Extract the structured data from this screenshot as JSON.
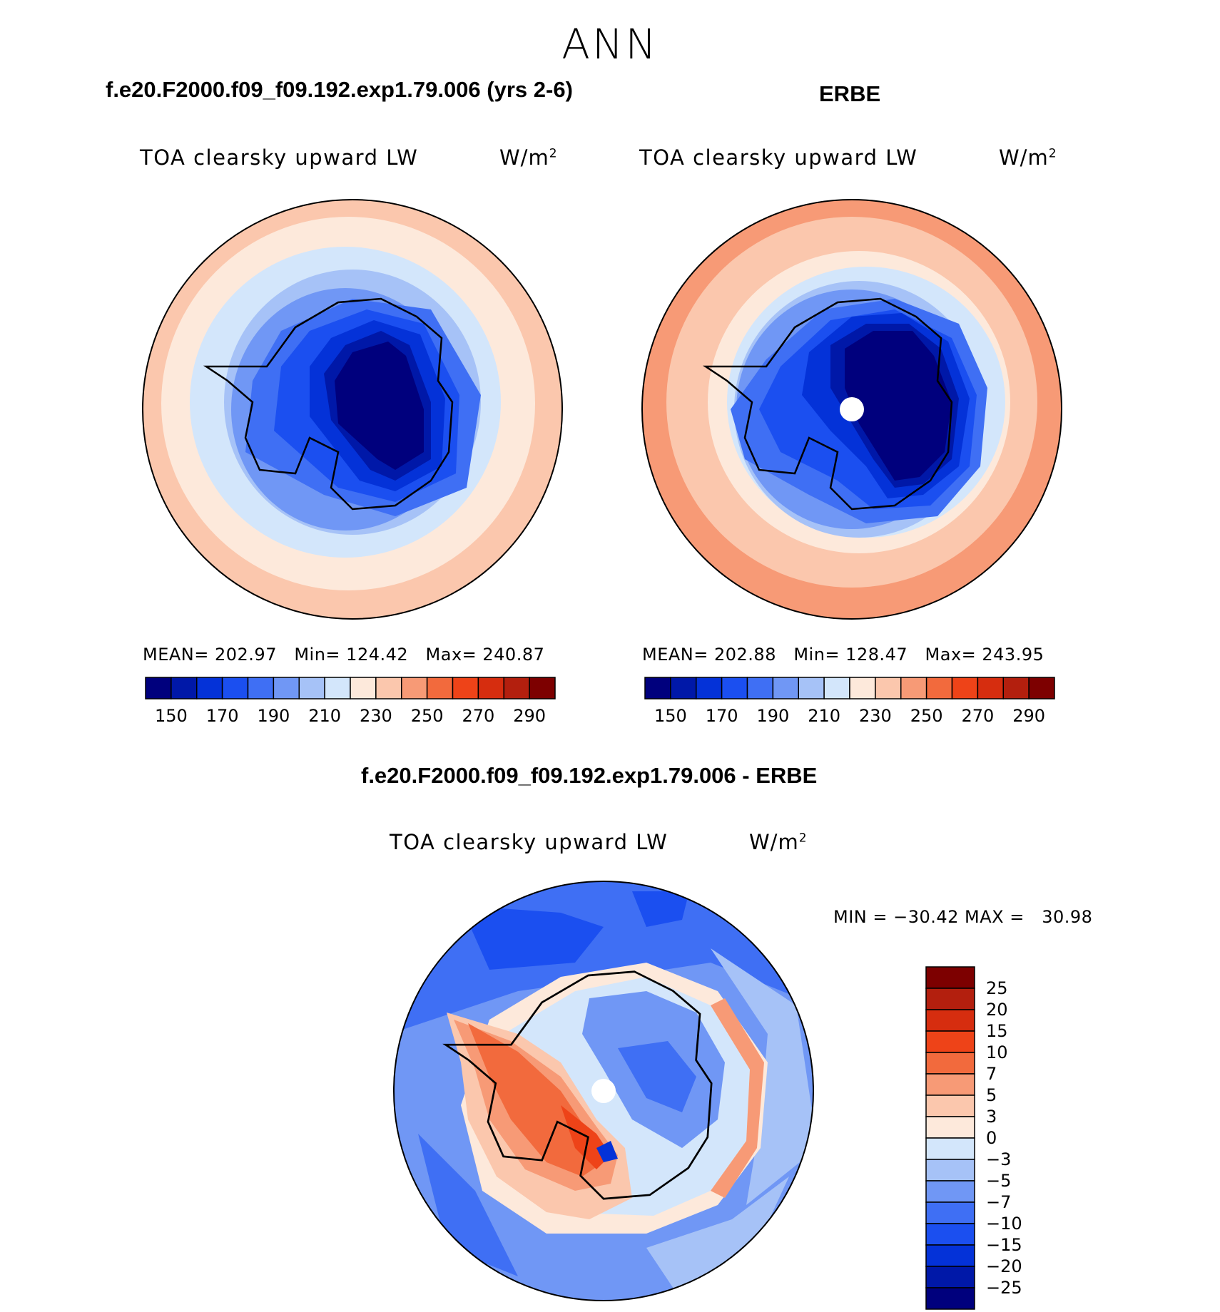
{
  "title": "ANN",
  "panels": [
    {
      "heading": "f.e20.F2000.f09_f09.192.exp1.79.006 (yrs 2-6)",
      "variable": "TOA clearsky upward LW",
      "units": "W/m",
      "units_sup": "2",
      "stats": "MEAN= 202.97   Min= 124.42   Max= 240.87",
      "colorbar_ticks": [
        "150",
        "170",
        "190",
        "210",
        "230",
        "250",
        "270",
        "290"
      ]
    },
    {
      "heading": "ERBE",
      "variable": "TOA clearsky upward LW",
      "units": "W/m",
      "units_sup": "2",
      "stats": "MEAN= 202.88   Min= 128.47   Max= 243.95",
      "colorbar_ticks": [
        "150",
        "170",
        "190",
        "210",
        "230",
        "250",
        "270",
        "290"
      ]
    }
  ],
  "diff": {
    "heading": "f.e20.F2000.f09_f09.192.exp1.79.006 - ERBE",
    "variable": "TOA clearsky upward LW",
    "units": "W/m",
    "units_sup": "2",
    "stats": "MIN = −30.42 MAX =   30.98",
    "colorbar_ticks": [
      "25",
      "20",
      "15",
      "10",
      "7",
      "5",
      "3",
      "0",
      "−3",
      "−5",
      "−7",
      "−10",
      "−15",
      "−20",
      "−25"
    ]
  },
  "colors": {
    "field_scale": [
      "#00007d",
      "#0018a8",
      "#0432d8",
      "#1b4ff0",
      "#3f6ff4",
      "#7097f5",
      "#a6c2f7",
      "#d3e6fb",
      "#fde9db",
      "#fbc7ad",
      "#f79a76",
      "#f26a3d",
      "#ee4318",
      "#d62d0f",
      "#b31f0e",
      "#7d0000"
    ],
    "diff_scale": [
      "#7d0000",
      "#b31f0e",
      "#d62d0f",
      "#ee4318",
      "#f26a3d",
      "#f79a76",
      "#fbc7ad",
      "#fde9db",
      "#d3e6fb",
      "#a6c2f7",
      "#7097f5",
      "#3f6ff4",
      "#1b4ff0",
      "#0432d8",
      "#0018a8",
      "#00007d"
    ]
  }
}
